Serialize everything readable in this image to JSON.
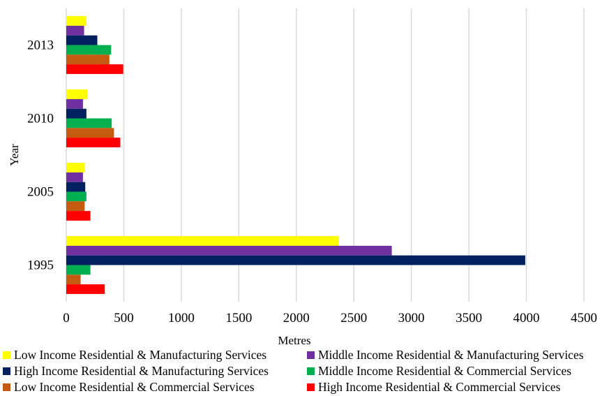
{
  "chart_data": {
    "type": "bar",
    "orientation": "horizontal",
    "xlabel": "Metres",
    "ylabel": "Year",
    "xlim": [
      0,
      4500
    ],
    "xticks": [
      0,
      500,
      1000,
      1500,
      2000,
      2500,
      3000,
      3500,
      4000,
      4500
    ],
    "categories": [
      "1995",
      "2005",
      "2010",
      "2013"
    ],
    "grid": "vertical",
    "legend_position": "bottom",
    "series": [
      {
        "name": "Low Income Residential & Manufacturing Services",
        "color": "#FFFF00",
        "values": [
          2370,
          160,
          185,
          175
        ]
      },
      {
        "name": "Middle Income Residential & Manufacturing Services",
        "color": "#7030A0",
        "values": [
          2830,
          145,
          145,
          155
        ]
      },
      {
        "name": "High Income Residential & Manufacturing Services",
        "color": "#002060",
        "values": [
          3990,
          165,
          175,
          270
        ]
      },
      {
        "name": "Middle Income Residential & Commercial Services",
        "color": "#00B050",
        "values": [
          210,
          175,
          395,
          390
        ]
      },
      {
        "name": "Low Income Residential & Commercial Services",
        "color": "#C55A11",
        "values": [
          125,
          160,
          415,
          375
        ]
      },
      {
        "name": "High Income Residential & Commercial Services",
        "color": "#FF0000",
        "values": [
          335,
          210,
          470,
          495
        ]
      }
    ]
  }
}
